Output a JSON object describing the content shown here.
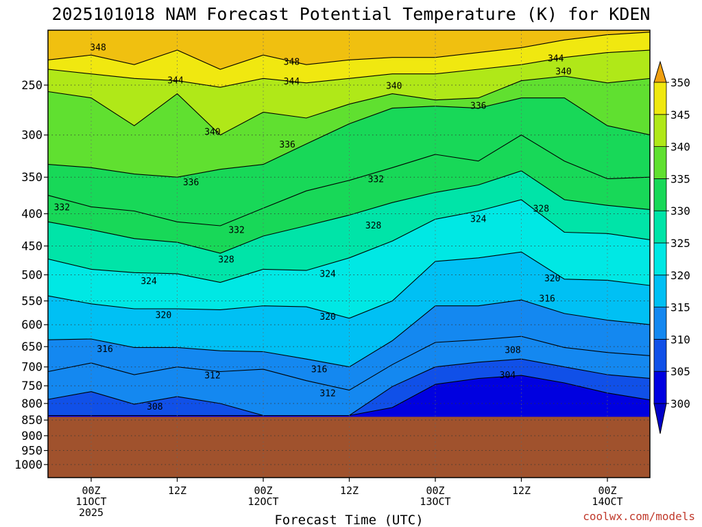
{
  "title": "2025101018 NAM Forecast Potential Temperature (K) for KDEN",
  "credit": "coolwx.com/models",
  "chart_data": {
    "type": "heatmap",
    "title": "2025101018 NAM Forecast Potential Temperature (K) for KDEN",
    "xlabel": "Forecast Time (UTC)",
    "ylabel": "",
    "x_hours_range": [
      -5,
      65
    ],
    "y_pressure_range": [
      200,
      1050
    ],
    "y_axis_inverted": true,
    "y_scale": "log-pressure",
    "y_ticks": [
      250,
      300,
      350,
      400,
      450,
      500,
      550,
      600,
      650,
      700,
      750,
      800,
      850,
      900,
      950,
      1000
    ],
    "x_ticks": [
      {
        "hour": 0,
        "lines": [
          "00Z",
          "11OCT",
          "2025"
        ]
      },
      {
        "hour": 10,
        "lines": [
          "12Z"
        ]
      },
      {
        "hour": 20,
        "lines": [
          "00Z",
          "12OCT"
        ]
      },
      {
        "hour": 30,
        "lines": [
          "12Z"
        ]
      },
      {
        "hour": 40,
        "lines": [
          "00Z",
          "13OCT"
        ]
      },
      {
        "hour": 50,
        "lines": [
          "12Z"
        ]
      },
      {
        "hour": 60,
        "lines": [
          "00Z",
          "14OCT"
        ]
      }
    ],
    "grid": true,
    "ground_level_pressure": 840,
    "colorbar": {
      "levels": [
        300,
        305,
        310,
        315,
        320,
        325,
        330,
        335,
        340,
        345,
        350
      ],
      "colors": [
        "#0000e0",
        "#1050e8",
        "#1488f0",
        "#00c0f4",
        "#00e8e4",
        "#00e4a8",
        "#18d858",
        "#60e030",
        "#b0e818",
        "#f0e810",
        "#f0c010"
      ],
      "under_color": "#0000c8",
      "over_color": "#f0a010",
      "orientation": "vertical",
      "placement": "right"
    },
    "series": [
      {
        "name": "",
        "contour": 348,
        "x": [
          -5,
          0,
          5,
          10,
          15,
          20,
          25,
          30,
          35,
          40,
          45,
          50,
          55,
          60,
          65
        ],
        "y": [
          228,
          224,
          232,
          220,
          236,
          224,
          232,
          228,
          226,
          226,
          222,
          218,
          212,
          208,
          206
        ]
      },
      {
        "name": "",
        "contour": 344,
        "x": [
          -5,
          0,
          5,
          10,
          15,
          20,
          25,
          30,
          35,
          40,
          45,
          50,
          55,
          60,
          65
        ],
        "y": [
          236,
          240,
          244,
          246,
          252,
          244,
          248,
          244,
          240,
          240,
          236,
          232,
          226,
          222,
          220
        ]
      },
      {
        "name": "",
        "contour": 340,
        "x": [
          -5,
          0,
          5,
          10,
          15,
          20,
          25,
          30,
          35,
          40,
          45,
          50,
          55,
          60,
          65
        ],
        "y": [
          256,
          262,
          290,
          258,
          300,
          276,
          282,
          268,
          258,
          264,
          262,
          246,
          242,
          248,
          244
        ]
      },
      {
        "name": "",
        "contour": 336,
        "x": [
          -5,
          0,
          5,
          10,
          15,
          20,
          25,
          30,
          35,
          40,
          45,
          50,
          55,
          60,
          65
        ],
        "y": [
          334,
          338,
          346,
          350,
          340,
          334,
          310,
          288,
          272,
          270,
          272,
          262,
          262,
          290,
          300
        ]
      },
      {
        "name": "",
        "contour": 332,
        "x": [
          -5,
          0,
          5,
          10,
          15,
          20,
          25,
          30,
          35,
          40,
          45,
          50,
          55,
          60,
          65
        ],
        "y": [
          374,
          390,
          396,
          412,
          418,
          392,
          368,
          354,
          338,
          322,
          330,
          300,
          330,
          352,
          350
        ]
      },
      {
        "name": "",
        "contour": 328,
        "x": [
          -5,
          0,
          5,
          10,
          15,
          20,
          25,
          30,
          35,
          40,
          45,
          50,
          55,
          60,
          65
        ],
        "y": [
          412,
          424,
          438,
          444,
          462,
          434,
          418,
          402,
          384,
          370,
          360,
          342,
          380,
          388,
          394
        ]
      },
      {
        "name": "",
        "contour": 324,
        "x": [
          -5,
          0,
          5,
          10,
          15,
          20,
          25,
          30,
          35,
          40,
          45,
          50,
          55,
          60,
          65
        ],
        "y": [
          472,
          490,
          496,
          498,
          514,
          490,
          492,
          470,
          442,
          408,
          396,
          380,
          428,
          430,
          440
        ]
      },
      {
        "name": "",
        "contour": 320,
        "x": [
          -5,
          0,
          5,
          10,
          15,
          20,
          25,
          30,
          35,
          40,
          45,
          50,
          55,
          60,
          65
        ],
        "y": [
          540,
          556,
          566,
          566,
          568,
          560,
          562,
          586,
          550,
          476,
          470,
          460,
          508,
          510,
          520
        ]
      },
      {
        "name": "",
        "contour": 316,
        "x": [
          -5,
          0,
          5,
          10,
          15,
          20,
          25,
          30,
          35,
          40,
          45,
          50,
          55,
          60,
          65
        ],
        "y": [
          634,
          632,
          652,
          652,
          660,
          662,
          680,
          700,
          636,
          560,
          560,
          548,
          576,
          590,
          600
        ]
      },
      {
        "name": "",
        "contour": 312,
        "x": [
          -5,
          0,
          5,
          10,
          15,
          20,
          25,
          30,
          35,
          40,
          45,
          50,
          55,
          60,
          65
        ],
        "y": [
          712,
          690,
          720,
          700,
          712,
          706,
          736,
          762,
          694,
          640,
          634,
          626,
          652,
          664,
          672
        ]
      },
      {
        "name": "",
        "contour": 308,
        "x": [
          -5,
          0,
          5,
          10,
          15,
          20,
          25,
          30,
          35,
          40,
          45,
          50,
          55,
          60,
          65
        ],
        "y": [
          788,
          766,
          802,
          780,
          800,
          836,
          836,
          836,
          752,
          700,
          688,
          680,
          700,
          720,
          730
        ]
      },
      {
        "name": "",
        "contour": 304,
        "x": [
          -5,
          0,
          5,
          10,
          15,
          20,
          25,
          30,
          35,
          40,
          45,
          50,
          55,
          60,
          65
        ],
        "y": [
          836,
          836,
          836,
          836,
          836,
          836,
          836,
          836,
          812,
          746,
          730,
          722,
          742,
          770,
          790
        ]
      }
    ],
    "contour_labels": [
      {
        "text": "348",
        "hour": 0.8,
        "pressure": 218
      },
      {
        "text": "348",
        "hour": 23.3,
        "pressure": 230
      },
      {
        "text": "344",
        "hour": 9.8,
        "pressure": 246
      },
      {
        "text": "344",
        "hour": 23.3,
        "pressure": 247
      },
      {
        "text": "340",
        "hour": 35.2,
        "pressure": 251
      },
      {
        "text": "344",
        "hour": 54.0,
        "pressure": 227
      },
      {
        "text": "340",
        "hour": 54.9,
        "pressure": 238
      },
      {
        "text": "336",
        "hour": 45.0,
        "pressure": 270
      },
      {
        "text": "340",
        "hour": 14.1,
        "pressure": 297
      },
      {
        "text": "336",
        "hour": 22.8,
        "pressure": 311
      },
      {
        "text": "336",
        "hour": 11.6,
        "pressure": 357
      },
      {
        "text": "332",
        "hour": 33.1,
        "pressure": 353
      },
      {
        "text": "332",
        "hour": -3.4,
        "pressure": 391
      },
      {
        "text": "328",
        "hour": 52.3,
        "pressure": 393
      },
      {
        "text": "324",
        "hour": 45.0,
        "pressure": 408
      },
      {
        "text": "328",
        "hour": 32.8,
        "pressure": 418
      },
      {
        "text": "332",
        "hour": 16.9,
        "pressure": 425
      },
      {
        "text": "328",
        "hour": 15.7,
        "pressure": 473
      },
      {
        "text": "324",
        "hour": 27.5,
        "pressure": 499
      },
      {
        "text": "320",
        "hour": 53.6,
        "pressure": 507
      },
      {
        "text": "324",
        "hour": 6.7,
        "pressure": 512
      },
      {
        "text": "316",
        "hour": 53.0,
        "pressure": 546
      },
      {
        "text": "320",
        "hour": 8.4,
        "pressure": 580
      },
      {
        "text": "320",
        "hour": 27.5,
        "pressure": 583
      },
      {
        "text": "308",
        "hour": 49.0,
        "pressure": 659
      },
      {
        "text": "316",
        "hour": 1.6,
        "pressure": 656
      },
      {
        "text": "316",
        "hour": 26.5,
        "pressure": 707
      },
      {
        "text": "312",
        "hour": 14.1,
        "pressure": 723
      },
      {
        "text": "304",
        "hour": 48.4,
        "pressure": 722
      },
      {
        "text": "312",
        "hour": 27.5,
        "pressure": 771
      },
      {
        "text": "308",
        "hour": 7.4,
        "pressure": 810
      }
    ]
  }
}
